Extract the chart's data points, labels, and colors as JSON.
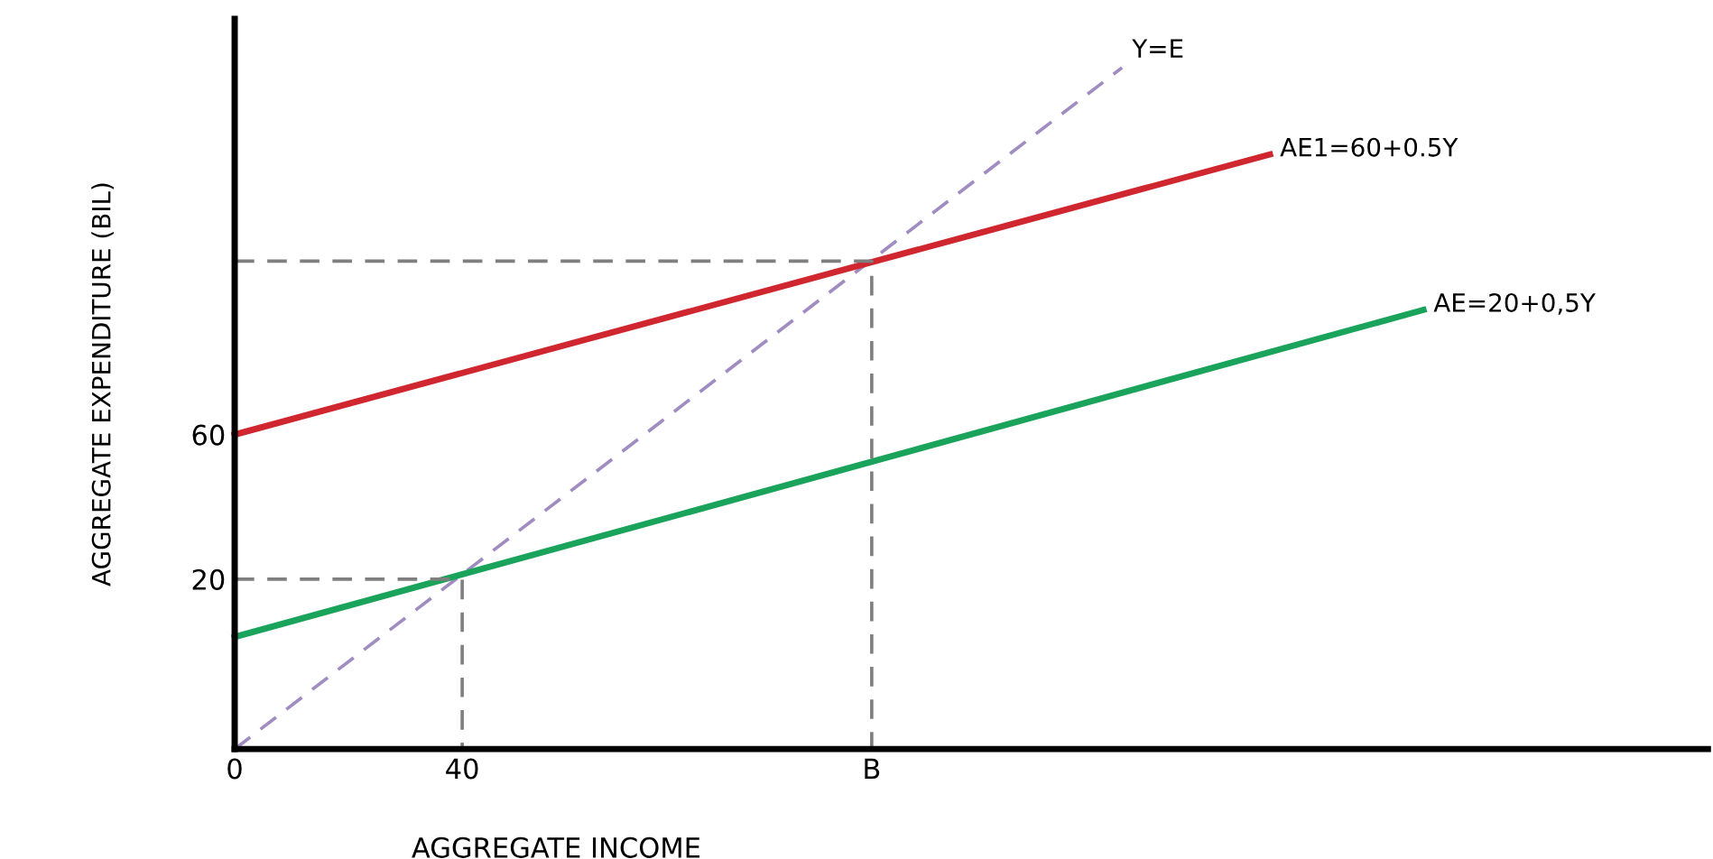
{
  "chart_data": {
    "type": "line",
    "xlabel": "AGGREGATE INCOME",
    "ylabel": "AGGREGATE EXPENDITURE (BIL)",
    "xlim": [
      0,
      259
    ],
    "ylim": [
      -27,
      175
    ],
    "xticks": [
      0,
      40,
      {
        "value": 112,
        "label": "B"
      }
    ],
    "yticks": [
      20,
      60
    ],
    "grid": false,
    "legend": false,
    "marker": "none",
    "series": [
      {
        "name": "Y=E",
        "color": "#a08cc0",
        "line_style": "dashed",
        "x": [
          0,
          156
        ],
        "values": [
          -27,
          161.5
        ]
      },
      {
        "name": "AE1=60+0.5Y",
        "color": "#d0262f",
        "line_style": "solid",
        "x": [
          0,
          182
        ],
        "values": [
          60,
          137.5
        ]
      },
      {
        "name": "AE=20+0,5Y",
        "color": "#1aa35a",
        "line_style": "solid",
        "x": [
          0,
          209
        ],
        "values": [
          4,
          94.5
        ]
      },
      {
        "color": "#7f7f7f",
        "line_style": "dashed",
        "x": [
          0,
          40,
          40
        ],
        "values": [
          20,
          20,
          -27
        ]
      },
      {
        "color": "#7f7f7f",
        "line_style": "dashed",
        "x": [
          0,
          112,
          112
        ],
        "values": [
          108,
          108,
          -27
        ]
      }
    ]
  }
}
